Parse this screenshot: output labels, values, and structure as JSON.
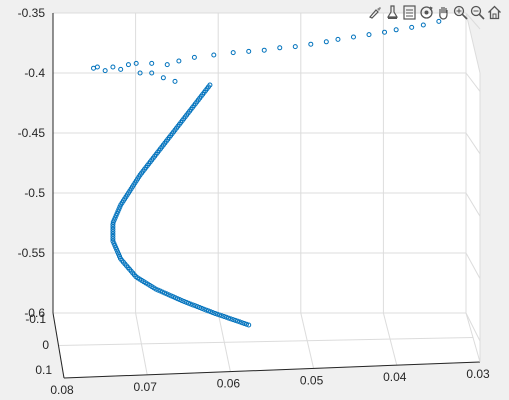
{
  "toolbar": {
    "buttons": [
      {
        "name": "brush-icon"
      },
      {
        "name": "datatip-icon"
      },
      {
        "name": "legend-icon"
      },
      {
        "name": "rotate3d-icon"
      },
      {
        "name": "pan-icon"
      },
      {
        "name": "zoom-in-icon"
      },
      {
        "name": "zoom-out-icon"
      },
      {
        "name": "home-icon"
      }
    ]
  },
  "colors": {
    "figure_bg": "#f0f0f0",
    "axes_bg": "#ffffff",
    "grid": "#dcdcdc",
    "axis": "#262626",
    "marker": "#0072bd"
  },
  "chart_data": {
    "type": "scatter",
    "projection": "3d",
    "marker": "open-circle",
    "grid": true,
    "x_ticks": [
      "0.08",
      "0.07",
      "0.06",
      "0.05",
      "0.04",
      "0.03"
    ],
    "y_ticks": [
      "-0.1",
      "0",
      "0.1"
    ],
    "z_ticks": [
      "-0.35",
      "-0.4",
      "-0.45",
      "-0.5",
      "-0.55",
      "-0.6"
    ],
    "xlim": [
      0.03,
      0.08
    ],
    "ylim": [
      -0.1,
      0.1
    ],
    "zlim": [
      -0.6,
      -0.35
    ],
    "series": [
      {
        "curve_points": [
          [
            0.063,
            -0.41
          ],
          [
            0.066,
            -0.435
          ],
          [
            0.069,
            -0.46
          ],
          [
            0.072,
            -0.485
          ],
          [
            0.0745,
            -0.51
          ],
          [
            0.0755,
            -0.525
          ],
          [
            0.0755,
            -0.54
          ],
          [
            0.0745,
            -0.555
          ],
          [
            0.0725,
            -0.57
          ],
          [
            0.07,
            -0.58
          ],
          [
            0.0665,
            -0.59
          ],
          [
            0.0625,
            -0.6
          ],
          [
            0.058,
            -0.61
          ]
        ],
        "curve_count": 150,
        "scattered_points": [
          [
            0.078,
            -0.396
          ],
          [
            0.0775,
            -0.395
          ],
          [
            0.0765,
            -0.398
          ],
          [
            0.0755,
            -0.395
          ],
          [
            0.0745,
            -0.397
          ],
          [
            0.0735,
            -0.393
          ],
          [
            0.0725,
            -0.392
          ],
          [
            0.072,
            -0.4
          ],
          [
            0.0705,
            -0.4
          ],
          [
            0.069,
            -0.404
          ],
          [
            0.0675,
            -0.407
          ],
          [
            0.0705,
            -0.392
          ],
          [
            0.0685,
            -0.393
          ],
          [
            0.067,
            -0.39
          ],
          [
            0.065,
            -0.387
          ],
          [
            0.0625,
            -0.385
          ],
          [
            0.06,
            -0.383
          ],
          [
            0.058,
            -0.382
          ],
          [
            0.056,
            -0.381
          ],
          [
            0.054,
            -0.379
          ],
          [
            0.052,
            -0.378
          ],
          [
            0.05,
            -0.376
          ],
          [
            0.048,
            -0.374
          ],
          [
            0.0465,
            -0.372
          ],
          [
            0.0445,
            -0.37
          ],
          [
            0.0425,
            -0.368
          ],
          [
            0.0405,
            -0.366
          ],
          [
            0.039,
            -0.364
          ],
          [
            0.037,
            -0.362
          ],
          [
            0.0355,
            -0.36
          ],
          [
            0.0335,
            -0.357
          ]
        ]
      }
    ]
  }
}
